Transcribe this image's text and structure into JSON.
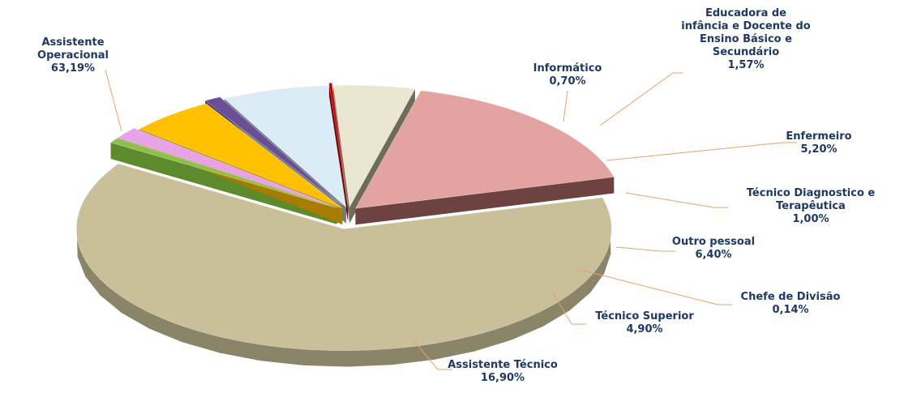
{
  "chart_data": {
    "type": "pie",
    "title": "",
    "style": "3d-exploded",
    "legend": "none",
    "slices": [
      {
        "name_lines": [
          "Assistente",
          "Operacional"
        ],
        "label": "63,19%",
        "value": 63.19,
        "color": "#c9bf98",
        "side_color": "#8a8468"
      },
      {
        "name_lines": [
          "Informático"
        ],
        "label": "0,70%",
        "value": 0.7,
        "color": "#8dc04a",
        "side_color": "#5c8a2c"
      },
      {
        "name_lines": [
          "Educadora de",
          "infância e Docente do",
          "Ensino Básico e",
          "Secundário"
        ],
        "label": "1,57%",
        "value": 1.57,
        "color": "#e7a3e6",
        "side_color": "#a16da0"
      },
      {
        "name_lines": [
          "Enfermeiro"
        ],
        "label": "5,20%",
        "value": 5.2,
        "color": "#ffc000",
        "side_color": "#a67d00"
      },
      {
        "name_lines": [
          "Técnico Diagnostico e",
          "Terapêutica"
        ],
        "label": "1,00%",
        "value": 1.0,
        "color": "#6a4e96",
        "side_color": "#46326a"
      },
      {
        "name_lines": [
          "Outro pessoal"
        ],
        "label": "6,40%",
        "value": 6.4,
        "color": "#dcecf7",
        "side_color": "#6f7a80"
      },
      {
        "name_lines": [
          "Chefe de Divisão"
        ],
        "label": "0,14%",
        "value": 0.14,
        "color": "#c00000",
        "side_color": "#700000"
      },
      {
        "name_lines": [
          "Técnico Superior"
        ],
        "label": "4,90%",
        "value": 4.9,
        "color": "#ebe6d2",
        "side_color": "#6f6b5c"
      },
      {
        "name_lines": [
          "Assistente Técnico"
        ],
        "label": "16,90%",
        "value": 16.9,
        "color": "#e3a4a1",
        "side_color": "#6e4240"
      }
    ]
  }
}
